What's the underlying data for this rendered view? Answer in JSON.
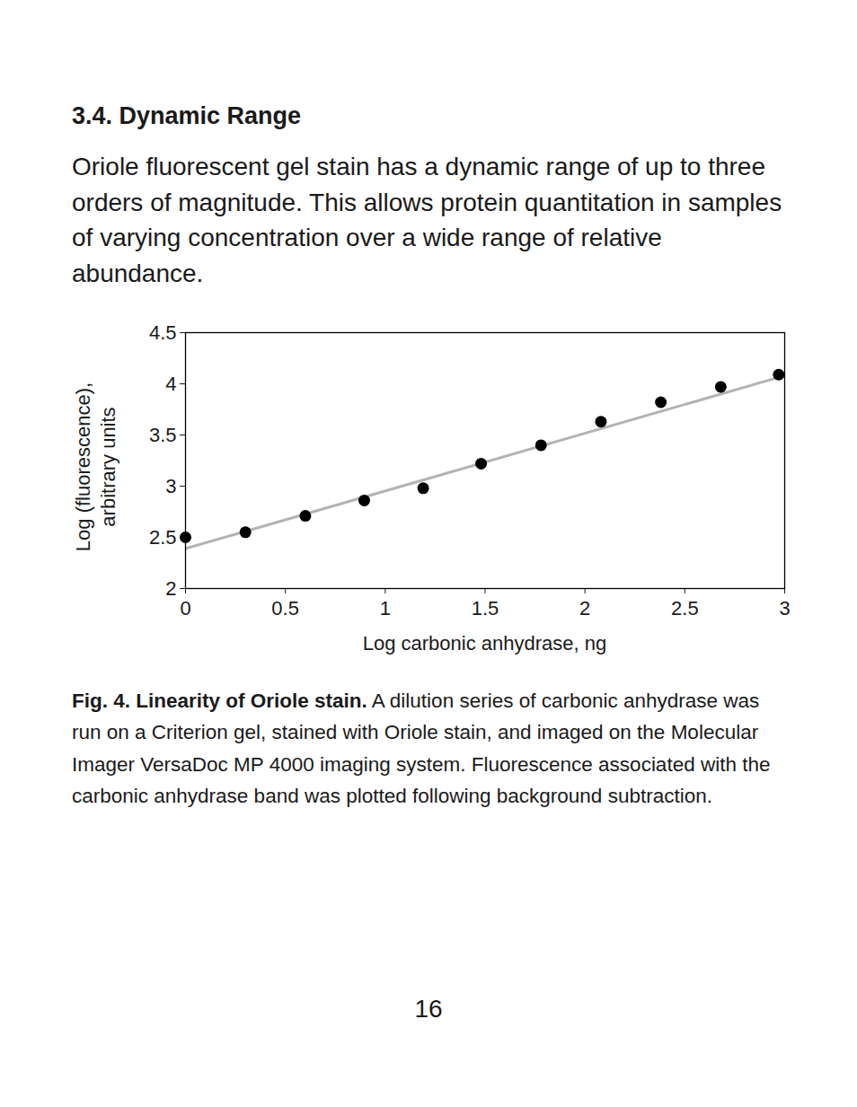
{
  "heading": "3.4. Dynamic Range",
  "paragraph": "Oriole fluorescent gel stain has a dynamic range of up to three orders of magnitude. This allows protein quantitation in samples of varying concentration over a wide range of relative abundance.",
  "chart_data": {
    "type": "scatter",
    "xlabel": "Log carbonic anhydrase, ng",
    "ylabel": [
      "Log (fluorescence),",
      "arbitrary units"
    ],
    "series": [
      {
        "type": "scatter",
        "marker": "circle",
        "color": "#000000",
        "x": [
          0,
          0.3,
          0.6,
          0.895,
          1.19,
          1.48,
          1.78,
          2.08,
          2.38,
          2.68,
          2.97
        ],
        "values": [
          2.5,
          2.55,
          2.71,
          2.86,
          2.98,
          3.22,
          3.4,
          3.63,
          3.82,
          3.97,
          4.09
        ]
      },
      {
        "type": "line",
        "color": "#b3b3b3",
        "line_style": "solid",
        "x": [
          0,
          3
        ],
        "values": [
          2.39,
          4.08
        ]
      }
    ],
    "xlim": [
      0,
      3
    ],
    "xticks": [
      0,
      0.5,
      1,
      1.5,
      2,
      2.5,
      3
    ],
    "ylim": [
      2,
      4.5
    ],
    "yticks": [
      2,
      2.5,
      3,
      3.5,
      4,
      4.5
    ],
    "grid": false
  },
  "caption": {
    "bold": "Fig. 4. Linearity of Oriole stain.",
    "text": "A dilution series of carbonic anhydrase was run on a Criterion gel, stained with Oriole stain, and imaged on the Molecular Imager VersaDoc MP 4000 imaging system. Fluorescence associated with the carbonic anhydrase band was plotted following background subtraction."
  },
  "page_number": "16"
}
